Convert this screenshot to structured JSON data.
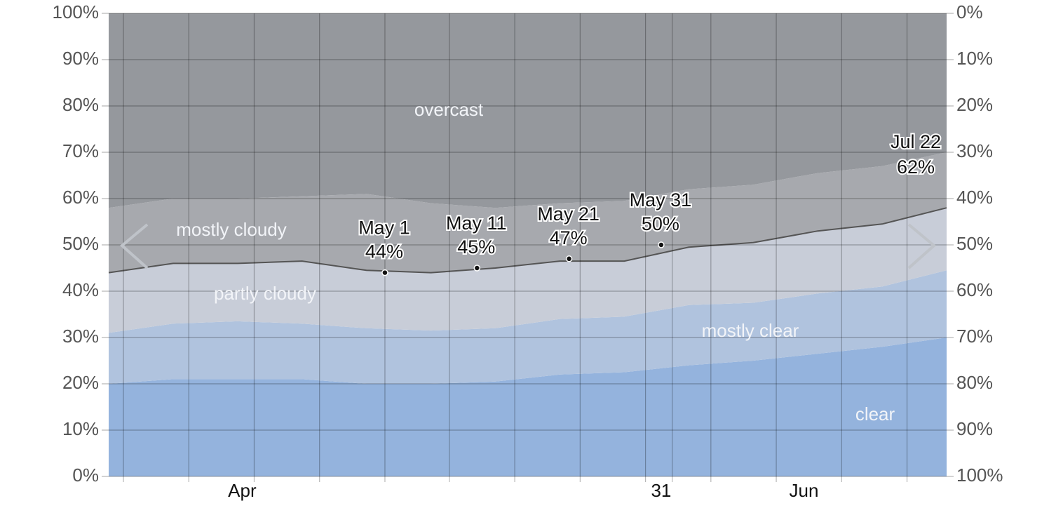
{
  "chart_data": {
    "type": "stacked_area",
    "x": [
      0,
      7,
      14,
      21,
      28,
      35,
      42,
      49,
      56,
      63,
      70,
      77,
      84,
      91
    ],
    "xlim": [
      0,
      91
    ],
    "xticks": [
      {
        "value": 14.5,
        "label": "Apr"
      },
      {
        "value": 60,
        "label": "31"
      },
      {
        "value": 75.5,
        "label": "Jun"
      }
    ],
    "xgrid": [
      1.6,
      8.7,
      15.8,
      22.9,
      30,
      37,
      44.1,
      51.2,
      58.3,
      61.2,
      65.4,
      72.5,
      79.6,
      86.7
    ],
    "ylim": [
      0,
      100
    ],
    "yticks": [
      {
        "value": 0,
        "label": "0%"
      },
      {
        "value": 10,
        "label": "10%"
      },
      {
        "value": 20,
        "label": "20%"
      },
      {
        "value": 30,
        "label": "30%"
      },
      {
        "value": 40,
        "label": "40%"
      },
      {
        "value": 50,
        "label": "50%"
      },
      {
        "value": 60,
        "label": "60%"
      },
      {
        "value": 70,
        "label": "70%"
      },
      {
        "value": 80,
        "label": "80%"
      },
      {
        "value": 90,
        "label": "90%"
      },
      {
        "value": 100,
        "label": "100%"
      }
    ],
    "y2lim": [
      100,
      0
    ],
    "y2ticks": [
      {
        "value": 100,
        "label": "100%"
      },
      {
        "value": 90,
        "label": "90%"
      },
      {
        "value": 80,
        "label": "80%"
      },
      {
        "value": 70,
        "label": "70%"
      },
      {
        "value": 60,
        "label": "60%"
      },
      {
        "value": 50,
        "label": "50%"
      },
      {
        "value": 40,
        "label": "40%"
      },
      {
        "value": 30,
        "label": "30%"
      },
      {
        "value": 20,
        "label": "20%"
      },
      {
        "value": 10,
        "label": "10%"
      },
      {
        "value": 0,
        "label": "0%"
      }
    ],
    "grid": true,
    "series": [
      {
        "name": "clear",
        "color": "#94b3dd",
        "values": [
          20,
          21,
          21,
          21,
          20,
          20,
          20.5,
          22,
          22.5,
          24,
          25,
          26.5,
          28,
          30
        ]
      },
      {
        "name": "mostly clear",
        "color": "#b0c3de",
        "values": [
          11,
          12,
          12.5,
          12,
          12,
          11.5,
          11.5,
          12,
          12,
          13,
          12.5,
          13,
          13,
          14.5
        ]
      },
      {
        "name": "partly cloudy",
        "color": "#c8cdd8",
        "values": [
          13,
          13,
          12.5,
          13.5,
          12.5,
          12.5,
          13,
          12.5,
          12,
          12.5,
          13,
          13.5,
          13.5,
          13.5
        ]
      },
      {
        "name": "mostly cloudy",
        "color": "#a7a9ae",
        "values": [
          14,
          14,
          14,
          14,
          16.5,
          15,
          13,
          12.5,
          13,
          12.5,
          12.5,
          12.5,
          12.5,
          12
        ]
      },
      {
        "name": "overcast",
        "color": "#95989d",
        "values": [
          42,
          40,
          40,
          39.5,
          39,
          41,
          42,
          41,
          40.5,
          38,
          37,
          34.5,
          33,
          30
        ]
      }
    ],
    "annotations": [
      {
        "x": 30,
        "label": "May 1",
        "value": 44,
        "value_label": "44%"
      },
      {
        "x": 40,
        "label": "May 11",
        "value": 45,
        "value_label": "45%"
      },
      {
        "x": 50,
        "label": "May 21",
        "value": 47,
        "value_label": "47%"
      },
      {
        "x": 60,
        "label": "May 31",
        "value": 50,
        "value_label": "50%"
      }
    ],
    "edge_annotation": {
      "label": "Jul 22",
      "value": 62,
      "value_label": "62%"
    }
  }
}
